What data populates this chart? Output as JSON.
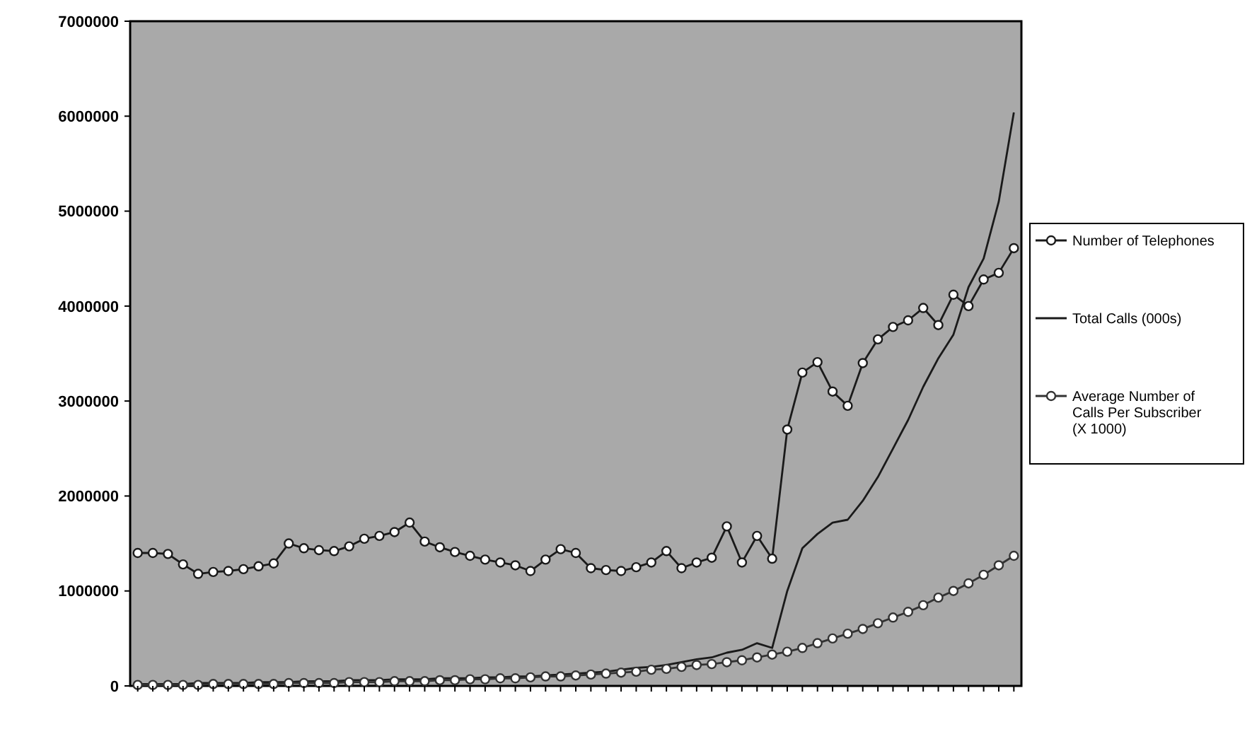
{
  "chart_data": {
    "type": "line",
    "categories": [
      null,
      null,
      null,
      null,
      null,
      null,
      null,
      null,
      null,
      null,
      null,
      null,
      null,
      null,
      null,
      null,
      null,
      null,
      null,
      null,
      null,
      null,
      null,
      null,
      null,
      null,
      null,
      null,
      null,
      null,
      null,
      null,
      null,
      null,
      null,
      null,
      null,
      null,
      null,
      null,
      null,
      null,
      null,
      null,
      null,
      null,
      null,
      null,
      null,
      null,
      null,
      null,
      null,
      null,
      null,
      null,
      null,
      null,
      null
    ],
    "ylim": [
      0,
      7000000
    ],
    "yticks": [
      0,
      1000000,
      2000000,
      3000000,
      4000000,
      5000000,
      6000000,
      7000000
    ],
    "grid": false,
    "legend": "right",
    "series": [
      {
        "name": "Number of Telephones",
        "color": "#1a1a1a",
        "marker": "circle",
        "values": [
          1400000,
          1400000,
          1390000,
          1280000,
          1180000,
          1200000,
          1210000,
          1230000,
          1260000,
          1290000,
          1500000,
          1450000,
          1430000,
          1420000,
          1470000,
          1550000,
          1580000,
          1620000,
          1720000,
          1520000,
          1460000,
          1410000,
          1370000,
          1330000,
          1300000,
          1270000,
          1210000,
          1330000,
          1440000,
          1400000,
          1240000,
          1220000,
          1210000,
          1250000,
          1300000,
          1420000,
          1240000,
          1300000,
          1350000,
          1680000,
          1300000,
          1580000,
          1340000,
          2700000,
          3300000,
          3410000,
          3100000,
          2950000,
          3400000,
          3650000,
          3780000,
          3850000,
          3980000,
          3800000,
          4120000,
          4000000,
          4280000,
          4350000,
          4610000
        ]
      },
      {
        "name": "Total Calls (000s)",
        "color": "#1a1a1a",
        "marker": "none",
        "values": [
          20000,
          20000,
          20000,
          20000,
          30000,
          30000,
          30000,
          30000,
          40000,
          40000,
          40000,
          50000,
          50000,
          50000,
          60000,
          60000,
          60000,
          70000,
          70000,
          70000,
          80000,
          80000,
          80000,
          90000,
          90000,
          100000,
          100000,
          110000,
          120000,
          130000,
          140000,
          150000,
          170000,
          190000,
          200000,
          220000,
          250000,
          280000,
          300000,
          350000,
          380000,
          450000,
          400000,
          1000000,
          1450000,
          1600000,
          1720000,
          1750000,
          1950000,
          2200000,
          2500000,
          2800000,
          3150000,
          3450000,
          3700000,
          4200000,
          4500000,
          5100000,
          6040000
        ]
      },
      {
        "name": "Average Number of Calls Per Subscriber (X 1000)",
        "color": "#333333",
        "marker": "circle",
        "values": [
          10000,
          10000,
          10000,
          10000,
          10000,
          20000,
          20000,
          20000,
          20000,
          20000,
          30000,
          30000,
          30000,
          30000,
          40000,
          40000,
          40000,
          50000,
          50000,
          50000,
          60000,
          60000,
          70000,
          70000,
          80000,
          80000,
          90000,
          100000,
          100000,
          110000,
          120000,
          130000,
          140000,
          150000,
          170000,
          180000,
          200000,
          220000,
          230000,
          250000,
          270000,
          300000,
          330000,
          360000,
          400000,
          450000,
          500000,
          550000,
          600000,
          660000,
          720000,
          780000,
          850000,
          930000,
          1000000,
          1080000,
          1170000,
          1270000,
          1370000
        ]
      }
    ]
  }
}
